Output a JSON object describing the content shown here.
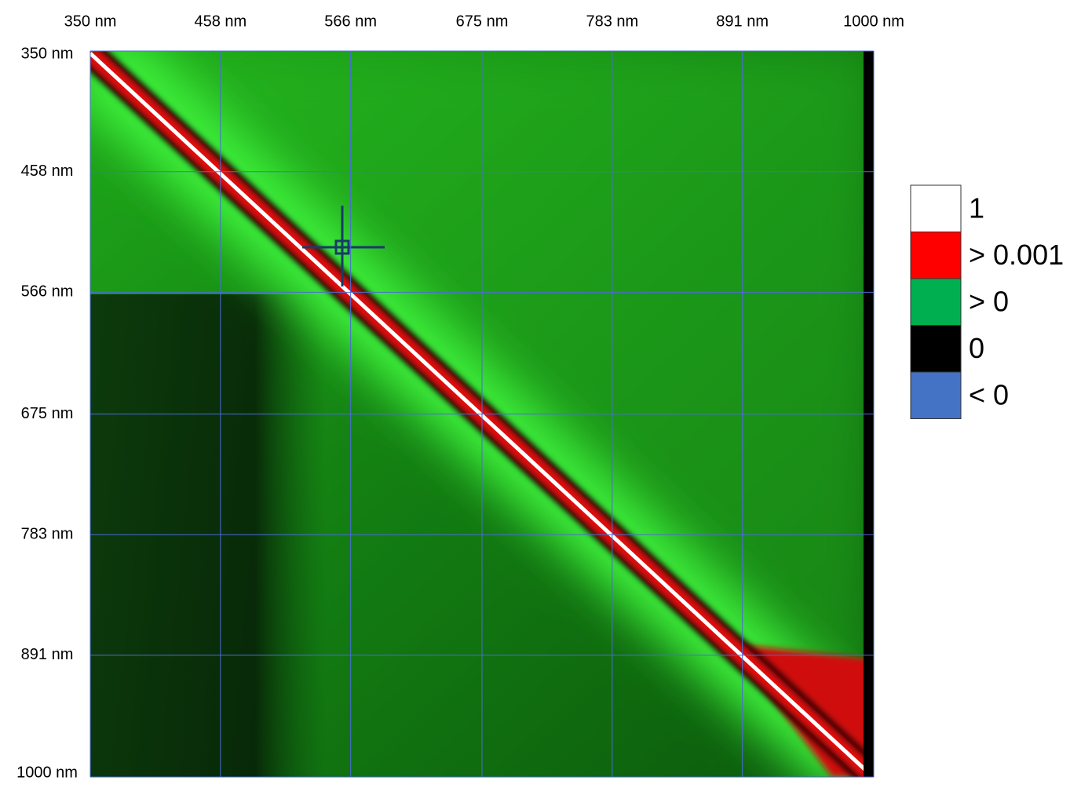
{
  "chart_data": {
    "type": "heatmap",
    "xlim": [
      350,
      1000
    ],
    "ylim": [
      350,
      1000
    ],
    "xticks": [
      {
        "value": 350,
        "label": "350 nm"
      },
      {
        "value": 458,
        "label": "458 nm"
      },
      {
        "value": 566,
        "label": "566 nm"
      },
      {
        "value": 675,
        "label": "675 nm"
      },
      {
        "value": 783,
        "label": "783 nm"
      },
      {
        "value": 891,
        "label": "891 nm"
      },
      {
        "value": 1000,
        "label": "1000 nm"
      }
    ],
    "yticks": [
      {
        "value": 350,
        "label": "350 nm"
      },
      {
        "value": 458,
        "label": "458 nm"
      },
      {
        "value": 566,
        "label": "566 nm"
      },
      {
        "value": 675,
        "label": "675 nm"
      },
      {
        "value": 783,
        "label": "783 nm"
      },
      {
        "value": 891,
        "label": "891 nm"
      },
      {
        "value": 1000,
        "label": "1000 nm"
      }
    ],
    "grid": true,
    "grid_color": "#4a6cd4",
    "legend": [
      {
        "label": "1",
        "color": "#ffffff"
      },
      {
        "label": "> 0.001",
        "color": "#ff0000"
      },
      {
        "label": "> 0",
        "color": "#00b050"
      },
      {
        "label": "0",
        "color": "#000000"
      },
      {
        "label": "< 0",
        "color": "#4472c4"
      }
    ]
  }
}
